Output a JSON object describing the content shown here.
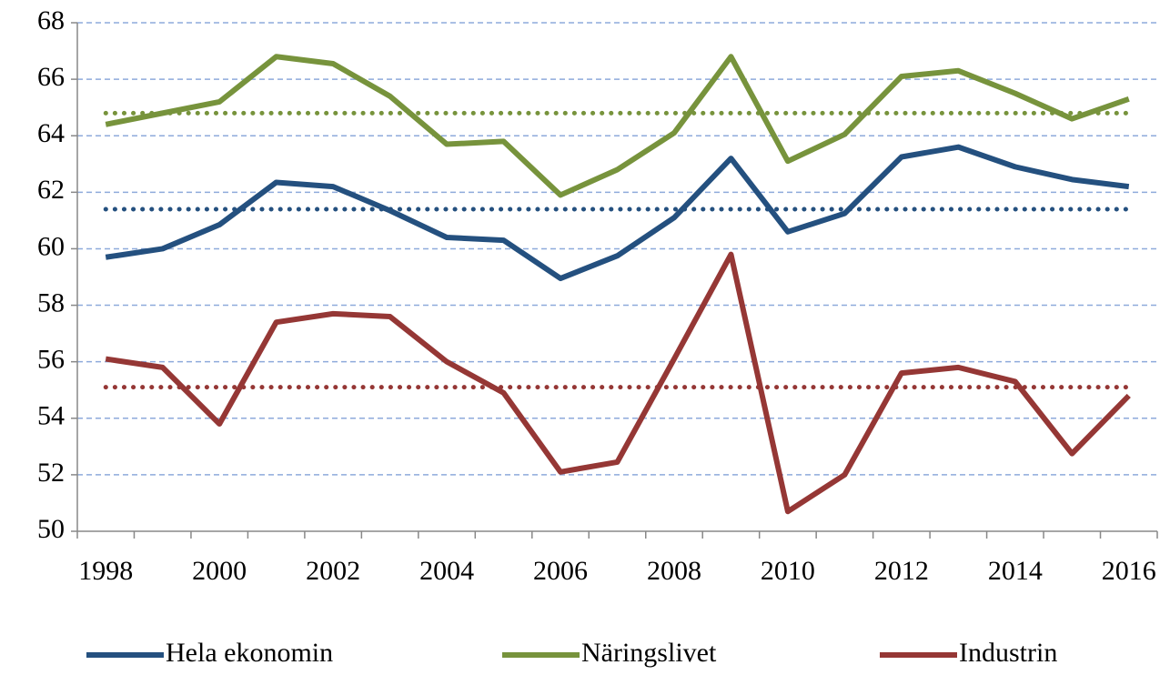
{
  "chart_data": {
    "type": "line",
    "categories": [
      "1998",
      null,
      "2000",
      null,
      "2002",
      null,
      "2004",
      null,
      "2006",
      null,
      "2008",
      null,
      "2010",
      null,
      "2012",
      null,
      "2014",
      null,
      "2016"
    ],
    "series": [
      {
        "name": "Hela ekonomin",
        "color": "#24507f",
        "values": [
          59.7,
          60.0,
          60.85,
          62.35,
          62.2,
          61.35,
          60.4,
          60.3,
          58.95,
          59.75,
          61.1,
          63.2,
          60.6,
          61.25,
          63.25,
          63.6,
          62.9,
          62.45,
          62.2
        ]
      },
      {
        "name": "Näringslivet",
        "color": "#77933c",
        "values": [
          64.4,
          64.8,
          65.2,
          66.8,
          66.55,
          65.4,
          63.7,
          63.8,
          61.9,
          62.8,
          64.1,
          66.8,
          63.1,
          64.05,
          66.1,
          66.3,
          65.5,
          64.6,
          65.3
        ]
      },
      {
        "name": "Industrin",
        "color": "#953735",
        "values": [
          56.1,
          55.8,
          53.8,
          57.4,
          57.7,
          57.6,
          56.0,
          54.9,
          52.1,
          52.45,
          56.1,
          59.8,
          50.7,
          52.0,
          55.6,
          55.8,
          55.3,
          52.75,
          54.8
        ]
      },
      {
        "color": "#24507f",
        "dotted": true,
        "values": [
          61.4,
          61.4,
          61.4,
          61.4,
          61.4,
          61.4,
          61.4,
          61.4,
          61.4,
          61.4,
          61.4,
          61.4,
          61.4,
          61.4,
          61.4,
          61.4,
          61.4,
          61.4,
          61.4
        ]
      },
      {
        "color": "#77933c",
        "dotted": true,
        "values": [
          64.8,
          64.8,
          64.8,
          64.8,
          64.8,
          64.8,
          64.8,
          64.8,
          64.8,
          64.8,
          64.8,
          64.8,
          64.8,
          64.8,
          64.8,
          64.8,
          64.8,
          64.8,
          64.8
        ]
      },
      {
        "color": "#953735",
        "dotted": true,
        "values": [
          55.1,
          55.1,
          55.1,
          55.1,
          55.1,
          55.1,
          55.1,
          55.1,
          55.1,
          55.1,
          55.1,
          55.1,
          55.1,
          55.1,
          55.1,
          55.1,
          55.1,
          55.1,
          55.1
        ]
      }
    ],
    "ylim": [
      50,
      68
    ],
    "yticks": [
      50,
      52,
      54,
      56,
      58,
      60,
      62,
      64,
      66,
      68
    ],
    "grid": true,
    "legend": "bottom"
  }
}
